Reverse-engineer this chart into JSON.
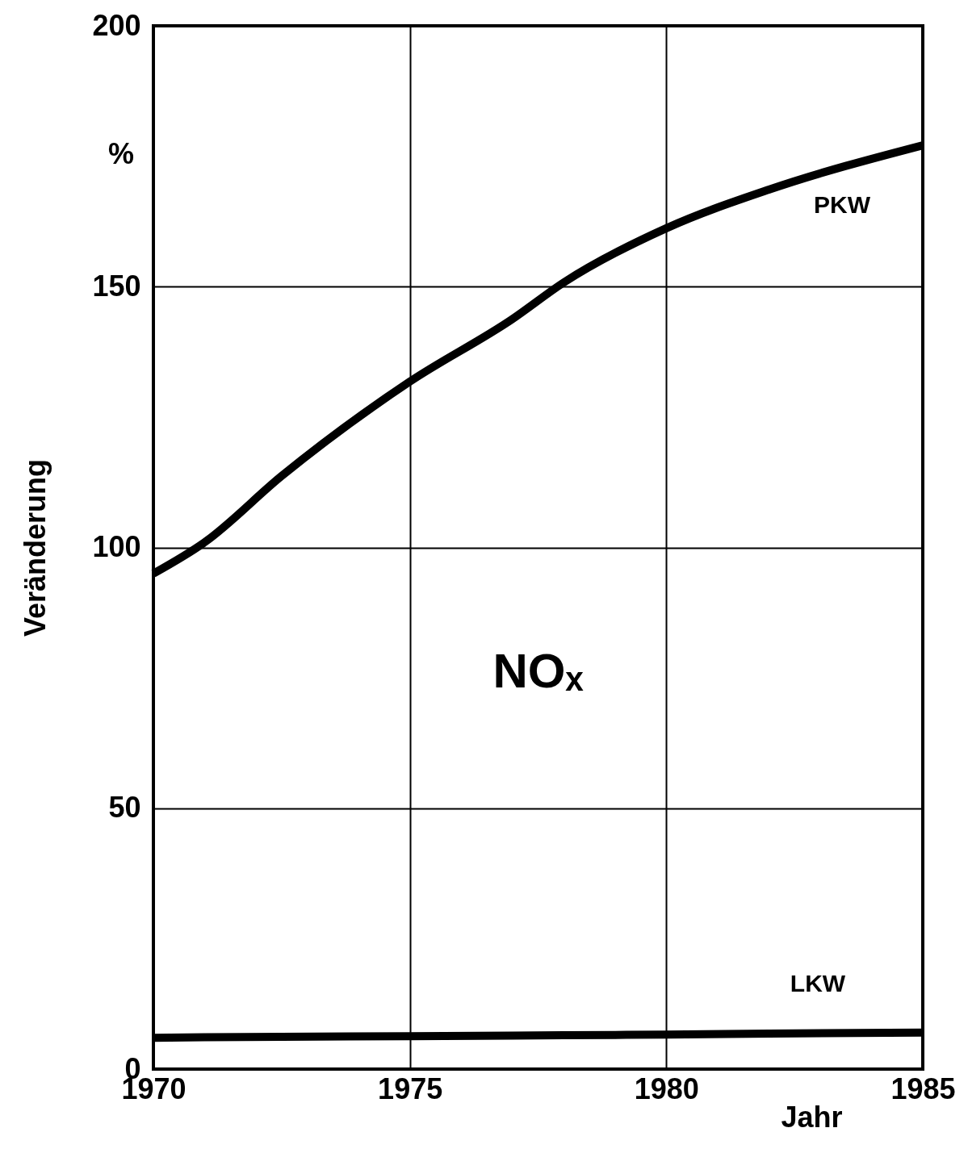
{
  "chart_data": {
    "type": "line",
    "xlabel": "Jahr",
    "ylabel": "Veränderung",
    "annotations": [
      "NOₓ",
      "%"
    ],
    "x": [
      1970,
      1971,
      1972.5,
      1975,
      1977,
      1978,
      1980,
      1982,
      1985
    ],
    "series": [
      {
        "name": "PKW",
        "color": "#000000",
        "values": [
          95,
          101,
          113.7,
          131.8,
          143.8,
          150.8,
          161.2,
          168.6,
          177.1
        ]
      },
      {
        "name": "LKW",
        "color": "#000000",
        "values": [
          6,
          6.1,
          6.2,
          6.3,
          6.4,
          6.5,
          6.6,
          6.8,
          7
        ]
      }
    ],
    "xlim": [
      1970,
      1985
    ],
    "xticks": [
      1970,
      1975,
      1980,
      1985
    ],
    "ylim": [
      0,
      200
    ],
    "yticks": [
      0,
      50,
      100,
      150,
      200
    ],
    "grid": true,
    "marker": "none",
    "line_style": "solid"
  }
}
